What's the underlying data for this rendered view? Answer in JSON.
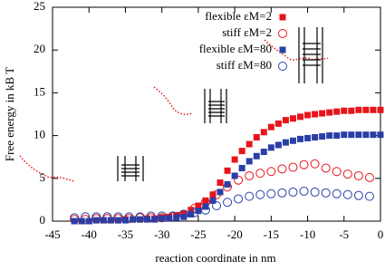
{
  "chart_data": {
    "type": "scatter",
    "xlabel": "reaction coordinate in nm",
    "ylabel": "Free energy in kB T",
    "xlim": [
      -45,
      0
    ],
    "xticks": [
      -45,
      -40,
      -35,
      -30,
      -25,
      -20,
      -15,
      -10,
      -5,
      0
    ],
    "ylim": [
      0,
      25
    ],
    "yticks": [
      0,
      5,
      10,
      15,
      20,
      25
    ],
    "legend": "top-right",
    "series": [
      {
        "name": "flexible εM=2",
        "color": "#e8141b",
        "marker": "square",
        "x": [
          -42,
          -41,
          -40,
          -39,
          -38,
          -37,
          -36,
          -35,
          -34,
          -33,
          -32,
          -31,
          -30,
          -29,
          -28,
          -27,
          -26,
          -25,
          -24,
          -23,
          -22,
          -21,
          -20,
          -19,
          -18,
          -17,
          -16,
          -15,
          -14,
          -13,
          -12,
          -11,
          -10,
          -9,
          -8,
          -7,
          -6,
          -5,
          -4,
          -3,
          -2,
          -1,
          0
        ],
        "values": [
          0,
          0,
          0,
          0.1,
          0.1,
          0.1,
          0.1,
          0.2,
          0.2,
          0.2,
          0.3,
          0.3,
          0.4,
          0.5,
          0.7,
          0.9,
          1.3,
          1.8,
          2.4,
          3.1,
          4.5,
          5.9,
          7.2,
          8.2,
          9,
          9.8,
          10.4,
          11,
          11.4,
          11.8,
          12,
          12.2,
          12.4,
          12.5,
          12.6,
          12.7,
          12.8,
          12.9,
          12.9,
          13,
          13,
          13,
          13
        ]
      },
      {
        "name": "stiff εM=2",
        "color": "#e8141b",
        "marker": "circle",
        "x": [
          -42,
          -40.5,
          -39,
          -37.5,
          -36,
          -34.5,
          -33,
          -31.5,
          -30,
          -28.5,
          -27,
          -25.5,
          -24,
          -22.5,
          -21,
          -19.5,
          -18,
          -16.5,
          -15,
          -13.5,
          -12,
          -10.5,
          -9,
          -7.5,
          -6,
          -4.5,
          -3,
          -1.5
        ],
        "values": [
          0.2,
          0.2,
          0.3,
          0.3,
          0.3,
          0.3,
          0.4,
          0.4,
          0.4,
          0.5,
          0.8,
          1.5,
          2.2,
          3.1,
          4.0,
          4.8,
          5.3,
          5.6,
          5.8,
          6.1,
          6.3,
          6.6,
          6.7,
          6.2,
          5.8,
          5.5,
          5.3,
          5.1
        ]
      },
      {
        "name": "flexible εM=80",
        "color": "#2a3fa6",
        "marker": "square",
        "x": [
          -42,
          -41,
          -40,
          -39,
          -38,
          -37,
          -36,
          -35,
          -34,
          -33,
          -32,
          -31,
          -30,
          -29,
          -28,
          -27,
          -26,
          -25,
          -24,
          -23,
          -22,
          -21,
          -20,
          -19,
          -18,
          -17,
          -16,
          -15,
          -14,
          -13,
          -12,
          -11,
          -10,
          -9,
          -8,
          -7,
          -6,
          -5,
          -4,
          -3,
          -2,
          -1,
          0
        ],
        "values": [
          0,
          0,
          0,
          0.1,
          0.1,
          0.1,
          0.1,
          0.1,
          0.2,
          0.2,
          0.2,
          0.2,
          0.3,
          0.3,
          0.4,
          0.5,
          0.8,
          1.2,
          1.7,
          2.4,
          3.4,
          4.3,
          5.3,
          6.2,
          7,
          7.6,
          8.1,
          8.6,
          8.9,
          9.2,
          9.4,
          9.6,
          9.7,
          9.8,
          9.9,
          10,
          10,
          10.1,
          10.1,
          10.1,
          10.1,
          10.1,
          10.1
        ]
      },
      {
        "name": "stiff εM=80",
        "color": "#2a3fa6",
        "marker": "circle",
        "x": [
          -42,
          -40.5,
          -39,
          -37.5,
          -36,
          -34.5,
          -33,
          -31.5,
          -30,
          -28.5,
          -27,
          -25.5,
          -24,
          -22.5,
          -21,
          -19.5,
          -18,
          -16.5,
          -15,
          -13.5,
          -12,
          -10.5,
          -9,
          -7.5,
          -6,
          -4.5,
          -3,
          -1.5
        ],
        "values": [
          0.4,
          0.5,
          0.5,
          0.5,
          0.5,
          0.5,
          0.5,
          0.6,
          0.6,
          0.6,
          0.8,
          1.0,
          1.3,
          1.8,
          2.2,
          2.6,
          2.9,
          3.1,
          3.2,
          3.3,
          3.4,
          3.5,
          3.4,
          3.3,
          3.2,
          3.1,
          3.0,
          2.9
        ]
      }
    ]
  }
}
